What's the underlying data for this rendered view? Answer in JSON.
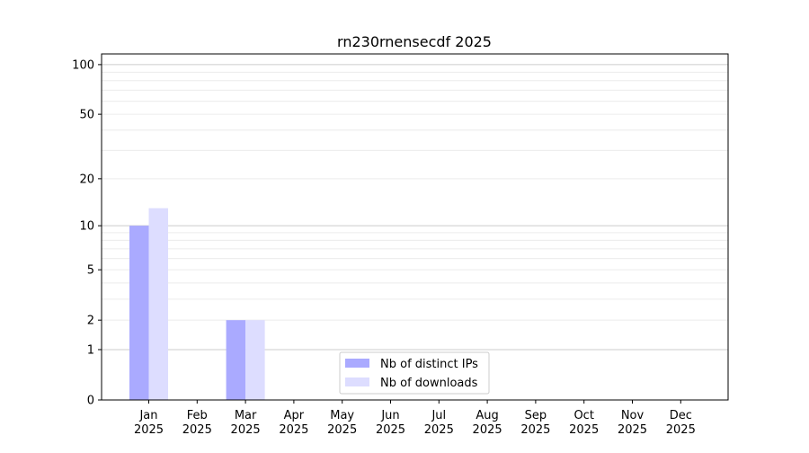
{
  "chart_data": {
    "type": "bar",
    "title": "rn230rnensecdf 2025",
    "xlabel": "",
    "ylabel": "",
    "yscale": "symlog",
    "ylim": [
      0,
      116
    ],
    "yticks": [
      0,
      1,
      2,
      5,
      10,
      20,
      50,
      100
    ],
    "grid": true,
    "legend_position": "bottom-center",
    "categories": [
      "Jan\n2025",
      "Feb\n2025",
      "Mar\n2025",
      "Apr\n2025",
      "May\n2025",
      "Jun\n2025",
      "Jul\n2025",
      "Aug\n2025",
      "Sep\n2025",
      "Oct\n2025",
      "Nov\n2025",
      "Dec\n2025"
    ],
    "series": [
      {
        "name": "Nb of distinct IPs",
        "color": "#aaaaff",
        "values": [
          10,
          0,
          2,
          0,
          0,
          0,
          0,
          0,
          0,
          0,
          0,
          0
        ]
      },
      {
        "name": "Nb of downloads",
        "color": "#ddddff",
        "values": [
          13,
          0,
          2,
          0,
          0,
          0,
          0,
          0,
          0,
          0,
          0,
          0
        ]
      }
    ]
  }
}
